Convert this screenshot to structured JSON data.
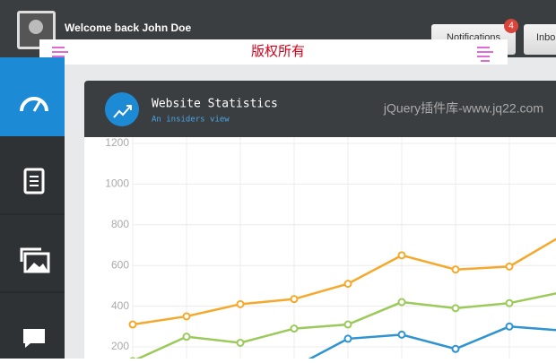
{
  "header": {
    "welcome": "Welcome back John Doe",
    "buttons": [
      {
        "label": "Notifications",
        "badge": 4
      },
      {
        "label": "Inbo"
      }
    ]
  },
  "watermark": {
    "text": "版权所有"
  },
  "panel": {
    "title": "Website Statistics",
    "subtitle": "An insiders view",
    "watermark": "jQuery插件库-www.jq22.com"
  },
  "chart_data": {
    "type": "line",
    "categories": [
      null,
      null,
      null,
      null,
      null,
      null,
      null,
      null,
      null
    ],
    "series": [
      {
        "color": "#f5a92c",
        "values": [
          310,
          350,
          410,
          435,
          510,
          650,
          580,
          595,
          750
        ]
      },
      {
        "color": "#9bc95a",
        "values": [
          130,
          250,
          220,
          290,
          310,
          420,
          390,
          415,
          470
        ]
      },
      {
        "color": "#2e93d1",
        "values": [
          null,
          null,
          null,
          100,
          240,
          260,
          190,
          300,
          280
        ]
      }
    ],
    "ylim": [
      0,
      1200
    ],
    "yticks": [
      200,
      400,
      600,
      800,
      1000,
      1200
    ],
    "grid": true
  }
}
